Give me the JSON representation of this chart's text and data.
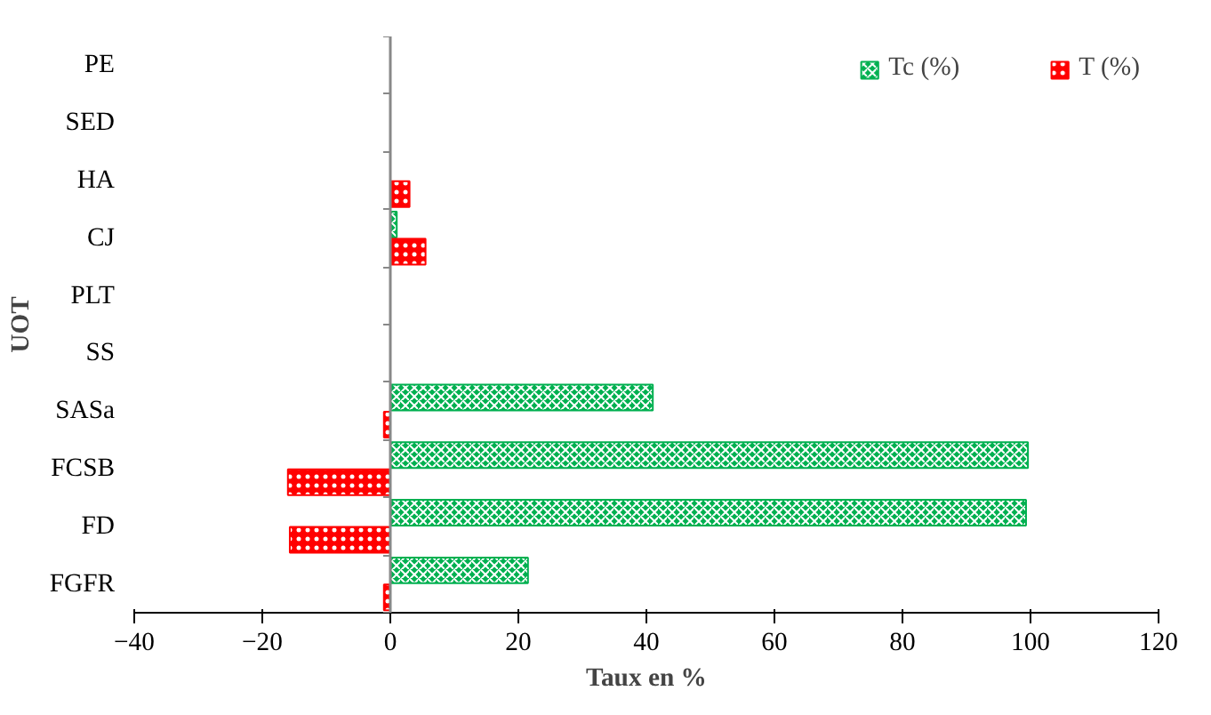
{
  "chart_data": {
    "type": "bar",
    "orientation": "horizontal",
    "xlabel": "Taux en %",
    "ylabel": "UOT",
    "categories": [
      "PE",
      "SED",
      "HA",
      "CJ",
      "PLT",
      "SS",
      "SASa",
      "FCSB",
      "FD",
      "FGFR"
    ],
    "series": [
      {
        "name": "Tc (%)",
        "color": "#00b050",
        "values": [
          0,
          0,
          0,
          1,
          0,
          0,
          41,
          99.6,
          99.3,
          21.5
        ]
      },
      {
        "name": "T (%)",
        "color": "#ff0000",
        "values": [
          0,
          0,
          3,
          5.5,
          0,
          0,
          -1,
          -16,
          -15.7,
          -1
        ]
      }
    ],
    "xlim": [
      -40,
      120
    ],
    "xticks": [
      -40,
      -20,
      0,
      20,
      40,
      60,
      80,
      100,
      120
    ],
    "legend": "top right"
  }
}
